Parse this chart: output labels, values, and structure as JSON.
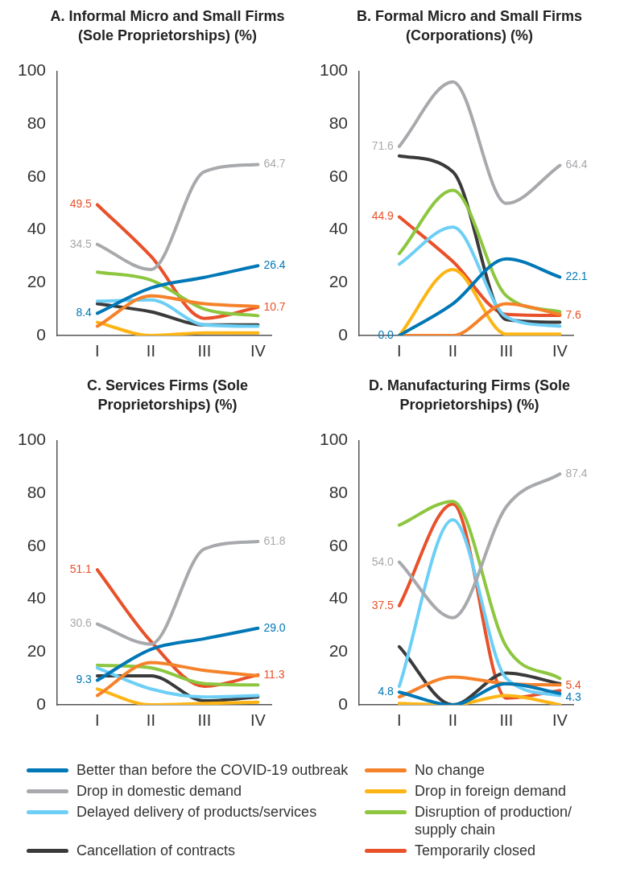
{
  "chart_data": [
    {
      "type": "line",
      "title": "A. Informal Micro and Small Firms (Sole Proprietorships) (%)",
      "categories": [
        "I",
        "II",
        "III",
        "IV"
      ],
      "ylim": [
        0,
        100
      ],
      "yticks": [
        0,
        20,
        40,
        60,
        80,
        100
      ],
      "grid": false,
      "legend": "bottom",
      "marker": "none",
      "line_style": "solid",
      "series": [
        {
          "name": "Better than before the COVID-19 outbreak",
          "color": "#0077b6",
          "values": [
            8.4,
            18,
            22,
            26.4
          ],
          "value_labels": [
            "8.4",
            null,
            null,
            "26.4"
          ]
        },
        {
          "name": "No change",
          "color": "#f5822a",
          "values": [
            3.5,
            15,
            12,
            11
          ],
          "value_labels": [
            null,
            null,
            null,
            null
          ]
        },
        {
          "name": "Drop in domestic demand",
          "color": "#a7a9ac",
          "values": [
            34.5,
            25,
            62,
            64.7
          ],
          "value_labels": [
            "34.5",
            null,
            null,
            "64.7"
          ]
        },
        {
          "name": "Drop in foreign demand",
          "color": "#fdb515",
          "values": [
            5,
            0,
            1,
            1
          ],
          "value_labels": [
            null,
            null,
            null,
            null
          ]
        },
        {
          "name": "Delayed delivery of products/services",
          "color": "#6dcff6",
          "values": [
            13,
            13.5,
            4,
            3.5
          ],
          "value_labels": [
            null,
            null,
            null,
            null
          ]
        },
        {
          "name": "Disruption of production/ supply chain",
          "color": "#8dc63f",
          "values": [
            24,
            21,
            10,
            7.5
          ],
          "value_labels": [
            null,
            null,
            null,
            null
          ]
        },
        {
          "name": "Cancellation of contracts",
          "color": "#3a3a3a",
          "values": [
            12,
            9,
            4,
            4
          ],
          "value_labels": [
            null,
            null,
            null,
            null
          ]
        },
        {
          "name": "Temporarily closed",
          "color": "#e8512a",
          "values": [
            49.5,
            30,
            6.5,
            10.7
          ],
          "value_labels": [
            "49.5",
            null,
            null,
            "10.7"
          ]
        }
      ]
    },
    {
      "type": "line",
      "title": "B. Formal Micro and Small Firms (Corporations) (%)",
      "categories": [
        "I",
        "II",
        "III",
        "IV"
      ],
      "ylim": [
        0,
        100
      ],
      "yticks": [
        0,
        20,
        40,
        60,
        80,
        100
      ],
      "grid": false,
      "marker": "none",
      "line_style": "solid",
      "series": [
        {
          "color": "#0077b6",
          "values": [
            0.0,
            12,
            29,
            22.1
          ],
          "value_labels": [
            "0.0",
            null,
            null,
            "22.1"
          ]
        },
        {
          "color": "#f5822a",
          "values": [
            0,
            0,
            12,
            8
          ],
          "value_labels": [
            null,
            null,
            null,
            null
          ]
        },
        {
          "color": "#a7a9ac",
          "values": [
            71.6,
            96,
            50,
            64.4
          ],
          "value_labels": [
            "71.6",
            null,
            null,
            "64.4"
          ]
        },
        {
          "color": "#fdb515",
          "values": [
            0,
            25,
            0.5,
            0.5
          ],
          "value_labels": [
            null,
            null,
            null,
            null
          ]
        },
        {
          "color": "#6dcff6",
          "values": [
            27,
            41,
            7,
            3.5
          ],
          "value_labels": [
            null,
            null,
            null,
            null
          ]
        },
        {
          "color": "#8dc63f",
          "values": [
            31,
            55,
            15,
            9
          ],
          "value_labels": [
            null,
            null,
            null,
            null
          ]
        },
        {
          "color": "#3a3a3a",
          "values": [
            68,
            62,
            6,
            5
          ],
          "value_labels": [
            null,
            null,
            null,
            null
          ]
        },
        {
          "color": "#e8512a",
          "values": [
            44.9,
            28,
            8,
            7.6
          ],
          "value_labels": [
            "44.9",
            null,
            null,
            "7.6"
          ]
        }
      ]
    },
    {
      "type": "line",
      "title": "C. Services Firms (Sole Proprietorships) (%)",
      "categories": [
        "I",
        "II",
        "III",
        "IV"
      ],
      "ylim": [
        0,
        100
      ],
      "yticks": [
        0,
        20,
        40,
        60,
        80,
        100
      ],
      "grid": false,
      "marker": "none",
      "line_style": "solid",
      "series": [
        {
          "color": "#0077b6",
          "values": [
            9.3,
            21,
            25,
            29.0
          ],
          "value_labels": [
            "9.3",
            null,
            null,
            "29.0"
          ]
        },
        {
          "color": "#f5822a",
          "values": [
            3.5,
            16,
            13,
            11
          ],
          "value_labels": [
            null,
            null,
            null,
            null
          ]
        },
        {
          "color": "#a7a9ac",
          "values": [
            30.6,
            23,
            59,
            61.8
          ],
          "value_labels": [
            "30.6",
            null,
            null,
            "61.8"
          ]
        },
        {
          "color": "#fdb515",
          "values": [
            6,
            0,
            0.5,
            1
          ],
          "value_labels": [
            null,
            null,
            null,
            null
          ]
        },
        {
          "color": "#6dcff6",
          "values": [
            14,
            6,
            3,
            3.5
          ],
          "value_labels": [
            null,
            null,
            null,
            null
          ]
        },
        {
          "color": "#8dc63f",
          "values": [
            15,
            14,
            8,
            7.5
          ],
          "value_labels": [
            null,
            null,
            null,
            null
          ]
        },
        {
          "color": "#3a3a3a",
          "values": [
            11,
            11,
            1.5,
            3
          ],
          "value_labels": [
            null,
            null,
            null,
            null
          ]
        },
        {
          "color": "#e8512a",
          "values": [
            51.1,
            24,
            7,
            11.3
          ],
          "value_labels": [
            "51.1",
            null,
            null,
            "11.3"
          ]
        }
      ]
    },
    {
      "type": "line",
      "title": "D. Manufacturing Firms (Sole Proprietorships) (%)",
      "categories": [
        "I",
        "II",
        "III",
        "IV"
      ],
      "ylim": [
        0,
        100
      ],
      "yticks": [
        0,
        20,
        40,
        60,
        80,
        100
      ],
      "grid": false,
      "marker": "none",
      "line_style": "solid",
      "series": [
        {
          "color": "#0077b6",
          "values": [
            4.8,
            0,
            8,
            4.3
          ],
          "value_labels": [
            "4.8",
            null,
            null,
            "4.3"
          ]
        },
        {
          "color": "#f5822a",
          "values": [
            3,
            10.5,
            8,
            7.5
          ],
          "value_labels": [
            null,
            null,
            null,
            null
          ]
        },
        {
          "color": "#a7a9ac",
          "values": [
            54.0,
            33,
            75,
            87.4
          ],
          "value_labels": [
            "54.0",
            null,
            null,
            "87.4"
          ]
        },
        {
          "color": "#fdb515",
          "values": [
            0.5,
            0,
            3.5,
            0
          ],
          "value_labels": [
            null,
            null,
            null,
            null
          ]
        },
        {
          "color": "#6dcff6",
          "values": [
            7,
            70,
            10,
            3.5
          ],
          "value_labels": [
            null,
            null,
            null,
            null
          ]
        },
        {
          "color": "#8dc63f",
          "values": [
            68,
            77,
            22,
            10
          ],
          "value_labels": [
            null,
            null,
            null,
            null
          ]
        },
        {
          "color": "#3a3a3a",
          "values": [
            22,
            0,
            12,
            8
          ],
          "value_labels": [
            null,
            null,
            null,
            null
          ]
        },
        {
          "color": "#e8512a",
          "values": [
            37.5,
            76,
            2.5,
            5.4
          ],
          "value_labels": [
            "37.5",
            null,
            null,
            "5.4"
          ]
        }
      ]
    }
  ]
}
